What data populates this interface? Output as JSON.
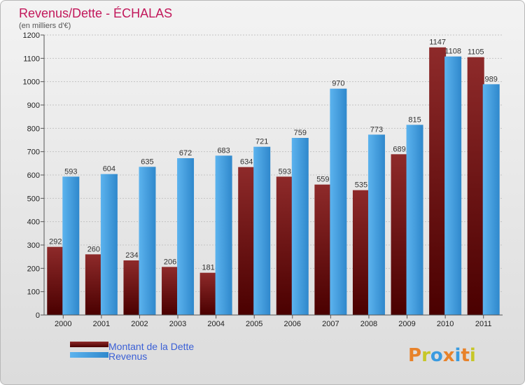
{
  "chart_data": {
    "type": "bar",
    "title": "Revenus/Dette - ÉCHALAS",
    "subtitle": "(en milliers d'€)",
    "categories": [
      "2000",
      "2001",
      "2002",
      "2003",
      "2004",
      "2005",
      "2006",
      "2007",
      "2008",
      "2009",
      "2010",
      "2011"
    ],
    "series": [
      {
        "name": "Montant de la Dette",
        "color": "#7a1212",
        "values": [
          292,
          260,
          234,
          206,
          181,
          634,
          593,
          559,
          535,
          689,
          1147,
          1105
        ]
      },
      {
        "name": "Revenus",
        "color": "#3a9be0",
        "values": [
          593,
          604,
          635,
          672,
          683,
          721,
          759,
          970,
          773,
          815,
          1108,
          989
        ]
      }
    ],
    "ylim": [
      0,
      1200
    ],
    "yticks": [
      0,
      100,
      200,
      300,
      400,
      500,
      600,
      700,
      800,
      900,
      1000,
      1100,
      1200
    ],
    "grid": true,
    "legend_position": "bottom-left"
  },
  "branding": {
    "logo_text": "Proxiti",
    "logo_colors": [
      "#e8822a",
      "#c7c728",
      "#3a9be0",
      "#e8822a",
      "#3a9be0",
      "#e8822a",
      "#c7c728"
    ]
  }
}
